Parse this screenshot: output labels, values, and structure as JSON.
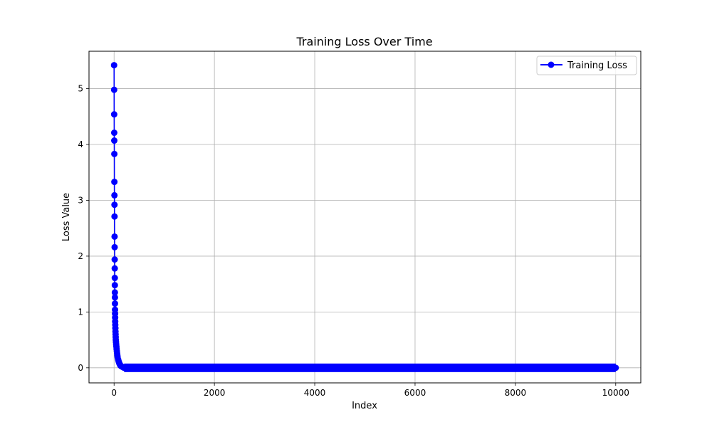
{
  "chart_data": {
    "type": "line",
    "title": "Training Loss Over Time",
    "xlabel": "Index",
    "ylabel": "Loss Value",
    "xlim": [
      -500,
      10500
    ],
    "ylim": [
      -0.27,
      5.67
    ],
    "xticks": [
      0,
      2000,
      4000,
      6000,
      8000,
      10000
    ],
    "xtick_labels": [
      "0",
      "2000",
      "4000",
      "6000",
      "8000",
      "10000"
    ],
    "yticks": [
      0,
      1,
      2,
      3,
      4,
      5
    ],
    "ytick_labels": [
      "0",
      "1",
      "2",
      "3",
      "4",
      "5"
    ],
    "grid": true,
    "legend_position": "top-right",
    "series": [
      {
        "name": "Training Loss",
        "color": "#0000ff",
        "marker": "circle",
        "x": [
          0,
          1,
          2,
          3,
          4,
          5,
          6,
          7,
          8,
          9,
          10,
          11,
          12,
          13,
          14,
          15,
          16,
          17,
          18,
          19,
          20,
          21,
          22,
          24,
          26,
          28,
          30,
          32,
          35,
          38,
          42,
          46,
          50,
          55,
          60,
          65,
          70,
          80,
          90,
          100,
          110,
          120,
          130,
          140,
          160,
          180,
          200,
          10000
        ],
        "y": [
          5.42,
          4.98,
          4.54,
          4.21,
          4.07,
          3.83,
          3.33,
          3.09,
          2.92,
          2.71,
          2.35,
          2.16,
          1.94,
          1.78,
          1.61,
          1.48,
          1.35,
          1.26,
          1.15,
          1.04,
          0.97,
          0.9,
          0.83,
          0.77,
          0.71,
          0.65,
          0.6,
          0.55,
          0.5,
          0.46,
          0.42,
          0.38,
          0.34,
          0.3,
          0.26,
          0.22,
          0.19,
          0.15,
          0.12,
          0.09,
          0.07,
          0.05,
          0.04,
          0.03,
          0.02,
          0.01,
          0.0,
          0.0
        ],
        "fill_range": [
          200,
          10000
        ]
      }
    ]
  }
}
